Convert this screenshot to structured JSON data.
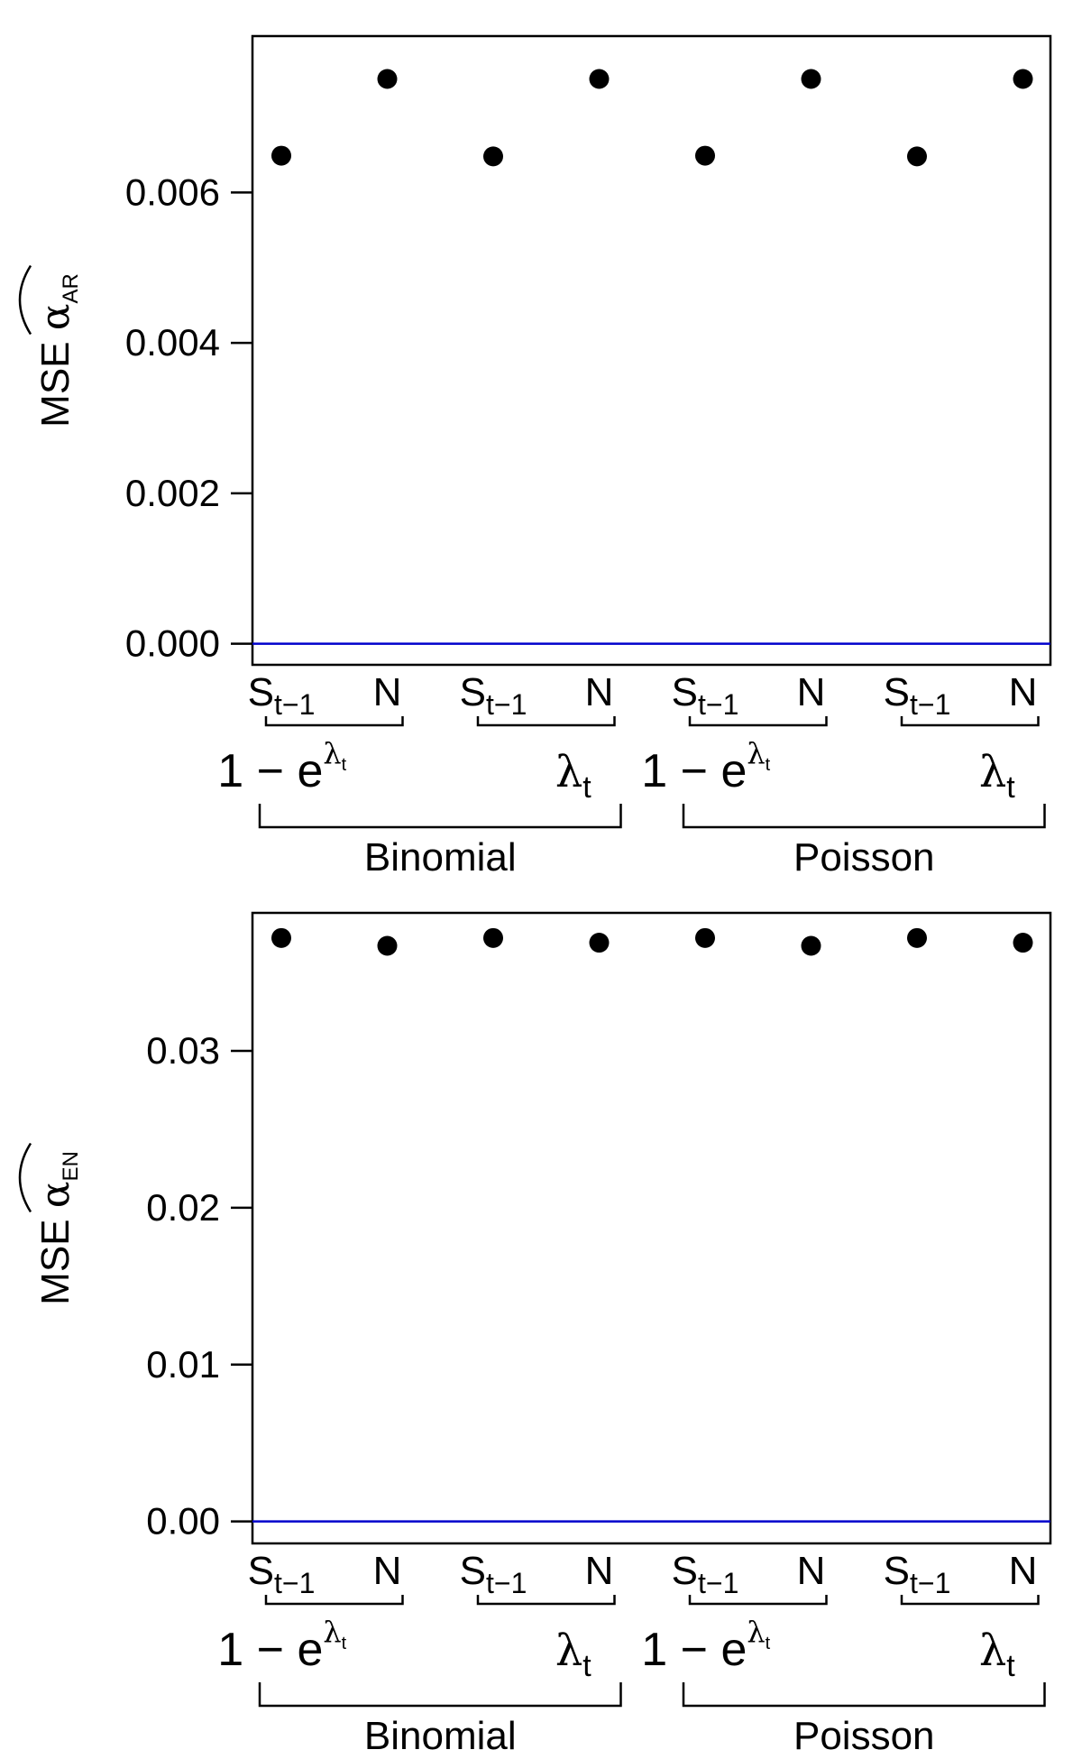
{
  "chart_data": [
    {
      "type": "scatter",
      "title": "",
      "ylabel": "MSE",
      "ylabel_symbol": "α",
      "ylabel_subscript": "AR",
      "ylim": [
        -0.00028,
        0.00808
      ],
      "yticks": [
        {
          "value": 0.0,
          "label": "0.000"
        },
        {
          "value": 0.002,
          "label": "0.002"
        },
        {
          "value": 0.004,
          "label": "0.004"
        },
        {
          "value": 0.006,
          "label": "0.006"
        }
      ],
      "x": [
        1,
        2,
        3,
        4,
        5,
        6,
        7,
        8
      ],
      "values": [
        0.00649,
        0.00751,
        0.00648,
        0.00751,
        0.00649,
        0.00751,
        0.00648,
        0.00751
      ],
      "reference_line": {
        "value": 0,
        "color": "#0000cc"
      },
      "point_color": "#000000"
    },
    {
      "type": "scatter",
      "title": "",
      "ylabel": "MSE",
      "ylabel_symbol": "α",
      "ylabel_subscript": "EN",
      "ylim": [
        -0.0014,
        0.0388
      ],
      "yticks": [
        {
          "value": 0.0,
          "label": "0.00"
        },
        {
          "value": 0.01,
          "label": "0.01"
        },
        {
          "value": 0.02,
          "label": "0.02"
        },
        {
          "value": 0.03,
          "label": "0.03"
        }
      ],
      "x": [
        1,
        2,
        3,
        4,
        5,
        6,
        7,
        8
      ],
      "values": [
        0.0372,
        0.0367,
        0.0372,
        0.0369,
        0.0372,
        0.0367,
        0.0372,
        0.0369
      ],
      "reference_line": {
        "value": 0,
        "color": "#0000cc"
      },
      "point_color": "#000000"
    }
  ],
  "x_axis_groups": {
    "level1": [
      {
        "main": "S",
        "sub": "t−1"
      },
      {
        "main": "N",
        "sub": ""
      },
      {
        "main": "S",
        "sub": "t−1"
      },
      {
        "main": "N",
        "sub": ""
      },
      {
        "main": "S",
        "sub": "t−1"
      },
      {
        "main": "N",
        "sub": ""
      },
      {
        "main": "S",
        "sub": "t−1"
      },
      {
        "main": "N",
        "sub": ""
      }
    ],
    "level2": [
      {
        "type": "exp",
        "prefix": "1 − e",
        "sup_symbol": "λ",
        "sup_sub": "t"
      },
      {
        "type": "lambda",
        "symbol": "λ",
        "sub": "t"
      },
      {
        "type": "exp",
        "prefix": "1 − e",
        "sup_symbol": "λ",
        "sup_sub": "t"
      },
      {
        "type": "lambda",
        "symbol": "λ",
        "sub": "t"
      }
    ],
    "level3": [
      "Binomial",
      "Poisson"
    ]
  }
}
